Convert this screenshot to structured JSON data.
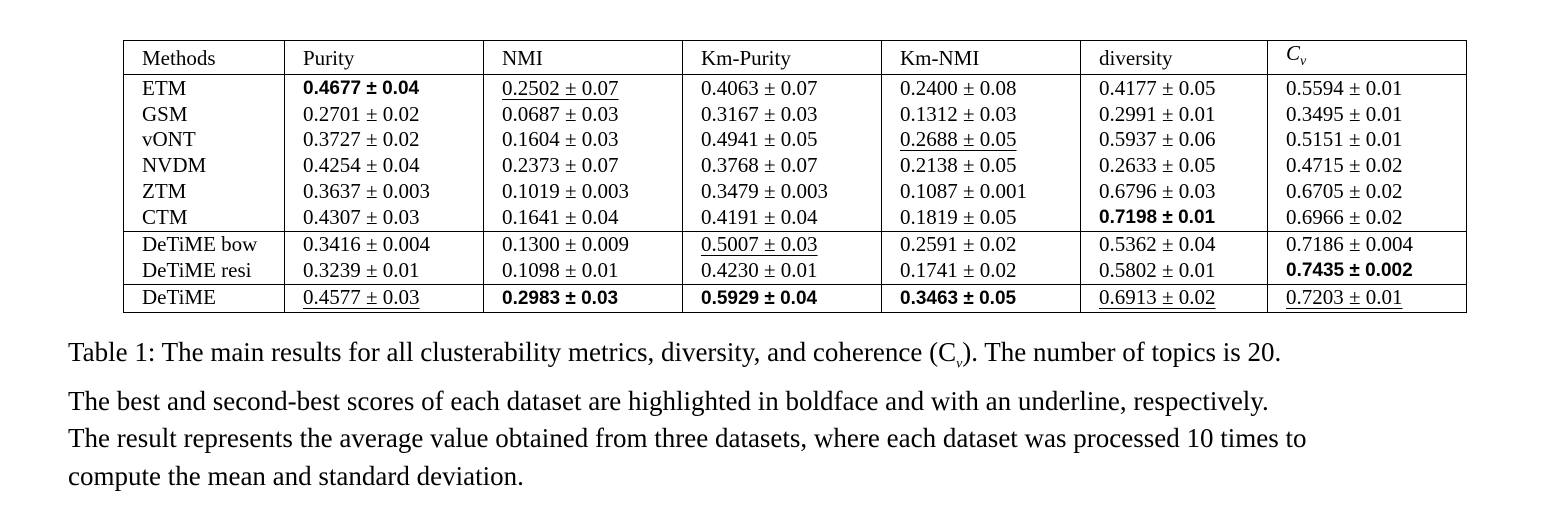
{
  "table": {
    "headers": [
      "Methods",
      "Purity",
      "NMI",
      "Km-Purity",
      "Km-NMI",
      "diversity",
      "C",
      "v"
    ],
    "rows": [
      {
        "method": "ETM",
        "cells": [
          "0.4677 ± 0.04",
          "0.2502 ± 0.07",
          "0.4063 ± 0.07",
          "0.2400 ± 0.08",
          "0.4177 ± 0.05",
          "0.5594 ± 0.01"
        ],
        "style": [
          "b",
          "u",
          "",
          "",
          "",
          ""
        ]
      },
      {
        "method": "GSM",
        "cells": [
          "0.2701 ± 0.02",
          "0.0687 ± 0.03",
          "0.3167 ± 0.03",
          "0.1312 ± 0.03",
          "0.2991 ± 0.01",
          "0.3495 ± 0.01"
        ],
        "style": [
          "",
          "",
          "",
          "",
          "",
          ""
        ]
      },
      {
        "method": "vONT",
        "cells": [
          "0.3727 ± 0.02",
          "0.1604 ± 0.03",
          "0.4941 ± 0.05",
          "0.2688 ± 0.05",
          "0.5937 ± 0.06",
          "0.5151 ± 0.01"
        ],
        "style": [
          "",
          "",
          "",
          "u",
          "",
          ""
        ]
      },
      {
        "method": "NVDM",
        "cells": [
          "0.4254 ± 0.04",
          "0.2373 ± 0.07",
          "0.3768 ± 0.07",
          "0.2138 ± 0.05",
          "0.2633 ± 0.05",
          "0.4715 ± 0.02"
        ],
        "style": [
          "",
          "",
          "",
          "",
          "",
          ""
        ]
      },
      {
        "method": "ZTM",
        "cells": [
          "0.3637 ± 0.003",
          "0.1019 ± 0.003",
          "0.3479 ± 0.003",
          "0.1087 ± 0.001",
          "0.6796 ± 0.03",
          "0.6705 ± 0.02"
        ],
        "style": [
          "",
          "",
          "",
          "",
          "",
          ""
        ]
      },
      {
        "method": "CTM",
        "cells": [
          "0.4307 ± 0.03",
          "0.1641 ± 0.04",
          "0.4191 ± 0.04",
          "0.1819 ± 0.05",
          "0.7198 ± 0.01",
          "0.6966 ± 0.02"
        ],
        "style": [
          "",
          "",
          "",
          "",
          "b",
          ""
        ]
      },
      {
        "method": "DeTiME bow",
        "cells": [
          "0.3416 ± 0.004",
          "0.1300 ± 0.009",
          "0.5007 ± 0.03",
          "0.2591 ± 0.02",
          "0.5362 ± 0.04",
          "0.7186 ± 0.004"
        ],
        "style": [
          "",
          "",
          "u",
          "",
          "",
          ""
        ]
      },
      {
        "method": "DeTiME resi",
        "cells": [
          "0.3239 ± 0.01",
          "0.1098 ± 0.01",
          "0.4230 ± 0.01",
          "0.1741 ± 0.02",
          "0.5802 ± 0.01",
          "0.7435 ± 0.002"
        ],
        "style": [
          "",
          "",
          "",
          "",
          "",
          "b"
        ]
      },
      {
        "method": "DeTiME",
        "cells": [
          "0.4577 ± 0.03",
          "0.2983 ± 0.03",
          "0.5929 ± 0.04",
          "0.3463 ± 0.05",
          "0.6913 ± 0.02",
          "0.7203 ± 0.01"
        ],
        "style": [
          "u",
          "b",
          "b",
          "b",
          "u",
          "u"
        ]
      }
    ]
  },
  "caption": {
    "lines": [
      "Table 1: The main results for all clusterability metrics, diversity, and coherence (C",
      "). The number of topics is 20.",
      "The best and second-best scores of each dataset are highlighted in boldface and with an underline, respectively.",
      "The result represents the average value obtained from three datasets, where each dataset was processed 10 times to",
      "compute the mean and standard deviation."
    ],
    "cv_sub": "v"
  }
}
